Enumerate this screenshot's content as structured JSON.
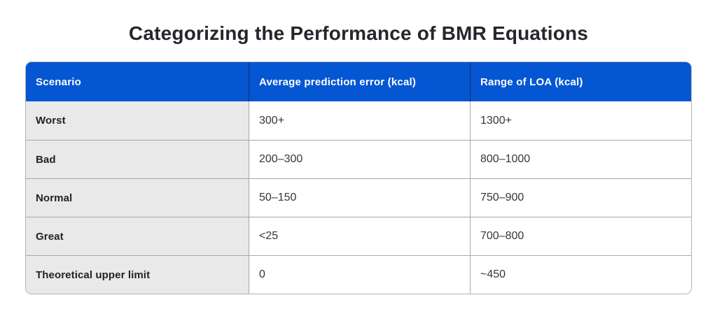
{
  "title": "Categorizing the Performance of BMR Equations",
  "table": {
    "columns": [
      {
        "label": "Scenario"
      },
      {
        "label": "Average prediction error (kcal)"
      },
      {
        "label": "Range of LOA (kcal)"
      }
    ],
    "rows": [
      {
        "scenario": "Worst",
        "avg_error": "300+",
        "loa_range": "1300+"
      },
      {
        "scenario": "Bad",
        "avg_error": "200–300",
        "loa_range": "800–1000"
      },
      {
        "scenario": "Normal",
        "avg_error": "50–150",
        "loa_range": "750–900"
      },
      {
        "scenario": "Great",
        "avg_error": "<25",
        "loa_range": "700–800"
      },
      {
        "scenario": "Theoretical upper limit",
        "avg_error": "0",
        "loa_range": "~450"
      }
    ],
    "colors": {
      "header_bg": "#0556d2",
      "header_text": "#ffffff",
      "header_divider": "#1d2d52",
      "label_column_bg": "#e9e9e9",
      "grid_border": "#a8a8a8",
      "outer_border": "#b3b3b3",
      "title_text": "#26262e",
      "body_text": "#35363e"
    }
  },
  "chart_data": {
    "type": "table",
    "title": "Categorizing the Performance of BMR Equations",
    "columns": [
      "Scenario",
      "Average prediction error (kcal)",
      "Range of LOA (kcal)"
    ],
    "rows": [
      [
        "Worst",
        "300+",
        "1300+"
      ],
      [
        "Bad",
        "200–300",
        "800–1000"
      ],
      [
        "Normal",
        "50–150",
        "750–900"
      ],
      [
        "Great",
        "<25",
        "700–800"
      ],
      [
        "Theoretical upper limit",
        "0",
        "~450"
      ]
    ]
  }
}
